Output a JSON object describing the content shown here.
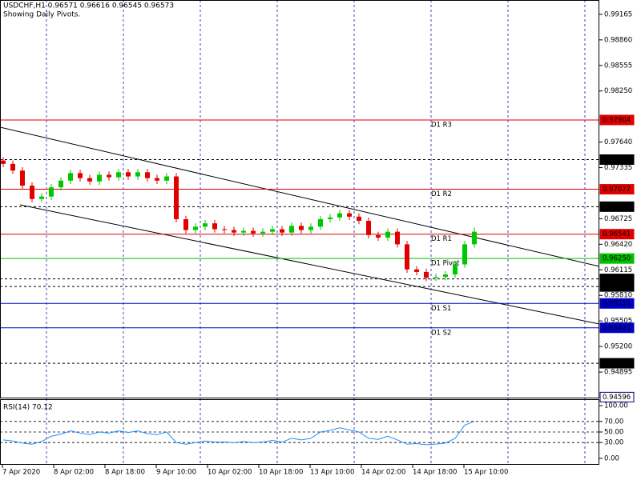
{
  "chart_data": {
    "type": "candlestick",
    "title": "USDCHF,H1  0.96571 0.96616 0.96545 0.96573",
    "subtitle": "Showing Daily Pivots.",
    "ylim": [
      0.9459,
      0.99336
    ],
    "yticks": [
      {
        "value": 0.99165,
        "label": "0.99165"
      },
      {
        "value": 0.9886,
        "label": "0.98860"
      },
      {
        "value": 0.98555,
        "label": "0.98555"
      },
      {
        "value": 0.9825,
        "label": "0.98250"
      },
      {
        "value": 0.9764,
        "label": "0.97640"
      },
      {
        "value": 0.97335,
        "label": "0.97335"
      },
      {
        "value": 0.96725,
        "label": "0.96725"
      },
      {
        "value": 0.9642,
        "label": "0.96420"
      },
      {
        "value": 0.96115,
        "label": "0.96115"
      },
      {
        "value": 0.9581,
        "label": "0.95810"
      },
      {
        "value": 0.95505,
        "label": "0.95505"
      },
      {
        "value": 0.952,
        "label": "0.95200"
      },
      {
        "value": 0.94895,
        "label": "0.94895"
      }
    ],
    "x_labels": [
      "7 Apr 2020",
      "8 Apr 02:00",
      "8 Apr 18:00",
      "9 Apr 10:00",
      "10 Apr 02:00",
      "10 Apr 18:00",
      "13 Apr 10:00",
      "14 Apr 02:00",
      "14 Apr 18:00",
      "15 Apr 10:00"
    ],
    "up_color": "#00c800",
    "down_color": "#e00000",
    "open": [
      0.9742,
      0.9738,
      0.973,
      0.9712,
      0.9696,
      0.9699,
      0.971,
      0.9718,
      0.9727,
      0.9721,
      0.9717,
      0.9725,
      0.9722,
      0.9728,
      0.9723,
      0.9728,
      0.9721,
      0.9718,
      0.9723,
      0.9672,
      0.9659,
      0.9663,
      0.9667,
      0.966,
      0.9659,
      0.9656,
      0.9658,
      0.9655,
      0.9657,
      0.966,
      0.9656,
      0.9664,
      0.9659,
      0.9663,
      0.9672,
      0.9674,
      0.9679,
      0.9675,
      0.967,
      0.9653,
      0.965,
      0.9657,
      0.9642,
      0.9612,
      0.9609,
      0.9602,
      0.9603,
      0.9606,
      0.9618,
      0.9642
    ],
    "high": [
      0.9746,
      0.9742,
      0.9734,
      0.9716,
      0.9703,
      0.9714,
      0.9722,
      0.9731,
      0.9731,
      0.9725,
      0.9729,
      0.9729,
      0.9732,
      0.9732,
      0.9732,
      0.9732,
      0.9725,
      0.9727,
      0.9727,
      0.9676,
      0.9667,
      0.9671,
      0.9671,
      0.9664,
      0.9663,
      0.9662,
      0.9662,
      0.9661,
      0.9664,
      0.9664,
      0.9668,
      0.9668,
      0.9667,
      0.9676,
      0.9678,
      0.9683,
      0.9683,
      0.9679,
      0.9674,
      0.9657,
      0.9661,
      0.9661,
      0.9646,
      0.9616,
      0.9613,
      0.9607,
      0.961,
      0.9622,
      0.9646,
      0.9662
    ],
    "low": [
      0.9734,
      0.9726,
      0.9708,
      0.9692,
      0.9692,
      0.9695,
      0.9706,
      0.9714,
      0.9717,
      0.9713,
      0.9713,
      0.9718,
      0.9718,
      0.9719,
      0.9719,
      0.9717,
      0.9714,
      0.9714,
      0.9668,
      0.9655,
      0.9655,
      0.9659,
      0.9656,
      0.9655,
      0.9652,
      0.9652,
      0.9651,
      0.9651,
      0.9653,
      0.9652,
      0.9652,
      0.9655,
      0.9655,
      0.9659,
      0.9668,
      0.967,
      0.9671,
      0.9666,
      0.9649,
      0.9646,
      0.9646,
      0.9638,
      0.9608,
      0.9605,
      0.9598,
      0.9598,
      0.9599,
      0.9602,
      0.9614,
      0.9638
    ],
    "close": [
      0.9738,
      0.973,
      0.9712,
      0.9696,
      0.9699,
      0.971,
      0.9718,
      0.9727,
      0.9721,
      0.9717,
      0.9725,
      0.9722,
      0.9728,
      0.9723,
      0.9728,
      0.9721,
      0.9718,
      0.9723,
      0.9672,
      0.9659,
      0.9663,
      0.9667,
      0.966,
      0.9659,
      0.9656,
      0.9658,
      0.9655,
      0.9657,
      0.966,
      0.9656,
      0.9664,
      0.9659,
      0.9663,
      0.9672,
      0.9674,
      0.9679,
      0.9675,
      0.967,
      0.9653,
      0.965,
      0.9657,
      0.9642,
      0.9612,
      0.9609,
      0.9602,
      0.9603,
      0.9606,
      0.9618,
      0.9642,
      0.9657
    ],
    "levels": [
      {
        "value": 0.97904,
        "label": "0.97904",
        "name": "D1 R3",
        "color": "#e00000",
        "dashed": false
      },
      {
        "value": 0.97431,
        "label": "0.97431",
        "color": "#000000",
        "dashed": true
      },
      {
        "value": 0.97077,
        "label": "0.97077",
        "name": "D1 R2",
        "color": "#e00000",
        "dashed": false
      },
      {
        "value": 0.96869,
        "label": "0.96869",
        "color": "#000000",
        "dashed": true
      },
      {
        "value": 0.96541,
        "label": "0.96541",
        "name": "D1 R1",
        "color": "#e00000",
        "dashed": false
      },
      {
        "value": 0.9625,
        "label": "0.96250",
        "name": "D1 Pivot",
        "color": "#00c000",
        "dashed": false
      },
      {
        "value": 0.96007,
        "label": "0.96007",
        "color": "#000000",
        "dashed": true
      },
      {
        "value": 0.95916,
        "label": "0.95916",
        "color": "#000000",
        "dashed": true
      },
      {
        "value": 0.95714,
        "label": "0.95714",
        "name": "D1 S1",
        "color": "#0000c8",
        "dashed": false
      },
      {
        "value": 0.95423,
        "label": "0.95423",
        "name": "D1 S2",
        "color": "#0000c8",
        "dashed": false
      },
      {
        "value": 0.95,
        "label": "0.95000",
        "color": "#000000",
        "dashed": true
      },
      {
        "value": 0.94596,
        "label": "0.94596",
        "color": "#000080",
        "box_only": true
      }
    ],
    "rsi": {
      "label": "RSI(14) 70.12",
      "color": "#1e90ff",
      "ylim": [
        -10.6,
        110.6
      ],
      "yticks": [
        {
          "value": 100,
          "label": "100.00"
        },
        {
          "value": 70,
          "label": "70.00"
        },
        {
          "value": 50,
          "label": "50.00"
        },
        {
          "value": 30,
          "label": "30.00"
        },
        {
          "value": 0,
          "label": "0.00"
        }
      ],
      "levels": [
        70,
        50,
        30
      ],
      "values": [
        35,
        33,
        29,
        27,
        32,
        42,
        46,
        52,
        48,
        45,
        50,
        48,
        52,
        49,
        52,
        47,
        45,
        50,
        30,
        27,
        30,
        33,
        31,
        31,
        30,
        32,
        30,
        31,
        34,
        31,
        38,
        35,
        38,
        50,
        53,
        58,
        54,
        50,
        38,
        36,
        42,
        35,
        27,
        28,
        26,
        27,
        29,
        38,
        63,
        70.12
      ]
    }
  }
}
